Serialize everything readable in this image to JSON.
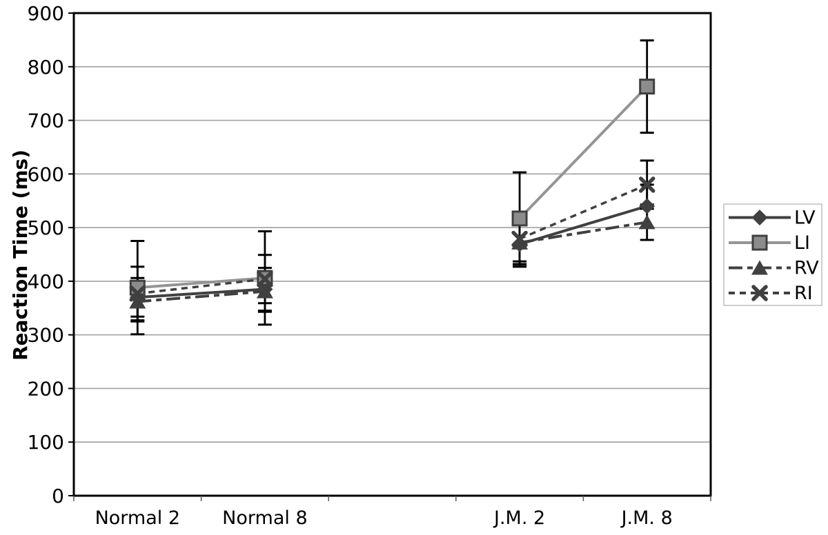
{
  "chart_data": {
    "type": "line",
    "title": "",
    "xlabel": "",
    "ylabel": "Reaction Time (ms)",
    "ylim": [
      0,
      900
    ],
    "yticks": [
      0,
      100,
      200,
      300,
      400,
      500,
      600,
      700,
      800,
      900
    ],
    "grid": "horizontal-only",
    "legend_position": "right-outside",
    "categories": [
      "Normal 2",
      "Normal 8",
      "",
      "J.M. 2",
      "J.M. 8"
    ],
    "series": [
      {
        "name": "LV",
        "marker": "diamond",
        "line_style": "solid",
        "color": "#404040",
        "marker_fill": "#404040",
        "values": [
          370,
          385,
          null,
          469,
          540
        ],
        "errors": [
          36,
          40,
          null,
          42,
          40
        ]
      },
      {
        "name": "LI",
        "marker": "square",
        "line_style": "solid",
        "color": "#949494",
        "marker_fill": "#8c8c8c",
        "marker_stroke": "#404040",
        "values": [
          388,
          406,
          null,
          517,
          763
        ],
        "errors": [
          87,
          87,
          null,
          86,
          86
        ]
      },
      {
        "name": "RV",
        "marker": "triangle",
        "line_style": "long-dash",
        "color": "#404040",
        "marker_fill": "#404040",
        "values": [
          362,
          381,
          null,
          472,
          510
        ],
        "errors": [
          37,
          38,
          null,
          35,
          33
        ]
      },
      {
        "name": "RI",
        "marker": "x",
        "line_style": "short-dash",
        "color": "#404040",
        "marker_fill": "#404040",
        "values": [
          377,
          404,
          null,
          479,
          580
        ],
        "errors": [
          50,
          45,
          null,
          47,
          45
        ]
      }
    ],
    "colors": {
      "background": "#ffffff",
      "axis": "#000000",
      "grid": "#a0a0a0",
      "error_bar": "#000000",
      "tick_label": "#000000",
      "legend_border": "#bfbfbf",
      "legend_background": "#ffffff"
    }
  }
}
